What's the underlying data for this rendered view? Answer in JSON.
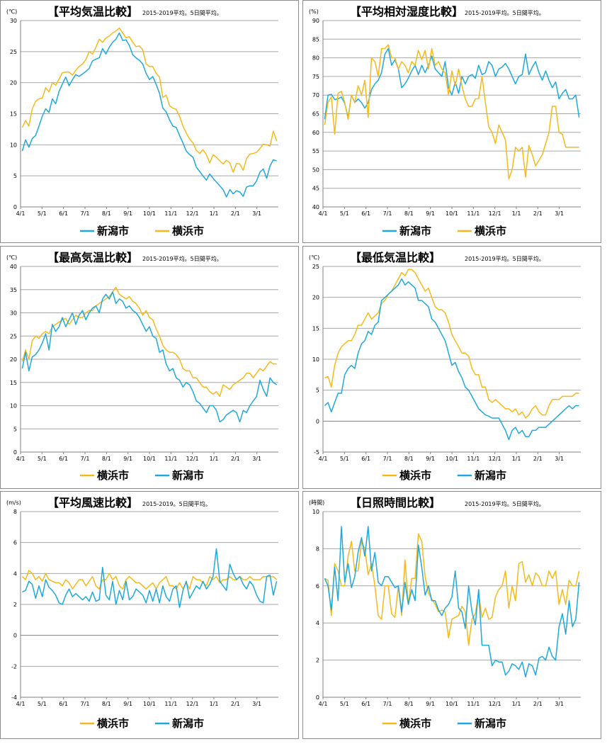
{
  "colors": {
    "niigata": "#1ea8dc",
    "yokohama": "#f6b91a",
    "grid": "#a6a6a6",
    "zero": "#808080"
  },
  "x_ticks": [
    "4/1",
    "5/1",
    "6/1",
    "7/1",
    "8/1",
    "9/1",
    "10/1",
    "11/1",
    "12/1",
    "1/1",
    "2/1",
    "3/1"
  ],
  "subtitle_5day": "2015-2019平均。5日間平均。",
  "subtitle_wind": "2015-2019。5日間平均。",
  "chart_data": [
    {
      "type": "line",
      "title": "【平均気温比較】",
      "subtitle": "2015-2019平均。5日間平均。",
      "unit": "(℃)",
      "ylim": [
        0,
        30
      ],
      "ystep": 5,
      "legend_order": [
        "新潟市",
        "横浜市"
      ],
      "series": [
        {
          "name": "新潟市",
          "color": "#1ea8dc",
          "values": [
            9.0,
            10.8,
            9.6,
            11.0,
            11.5,
            13.0,
            14.6,
            15.8,
            15.2,
            17.4,
            16.6,
            18.6,
            19.8,
            20.9,
            19.5,
            20.5,
            21.3,
            21.0,
            21.4,
            21.8,
            22.3,
            23.5,
            23.8,
            24.0,
            25.5,
            24.6,
            25.7,
            26.5,
            27.0,
            28.0,
            26.8,
            26.9,
            26.0,
            24.5,
            24.0,
            23.6,
            23.0,
            21.5,
            20.5,
            21.0,
            19.7,
            18.3,
            15.9,
            15.3,
            14.0,
            13.0,
            12.8,
            11.5,
            10.3,
            9.0,
            8.4,
            8.0,
            6.4,
            5.7,
            5.0,
            4.3,
            5.3,
            4.6,
            4.0,
            3.4,
            2.8,
            1.6,
            2.8,
            2.1,
            2.6,
            2.4,
            1.7,
            3.2,
            3.4,
            3.4,
            4.2,
            5.6,
            6.1,
            4.6,
            6.6,
            7.6,
            7.4
          ]
        },
        {
          "name": "横浜市",
          "color": "#f6b91a",
          "values": [
            12.8,
            13.9,
            13.0,
            15.8,
            17.0,
            17.4,
            17.5,
            19.2,
            18.5,
            20.0,
            19.6,
            20.6,
            21.6,
            21.7,
            21.7,
            21.2,
            22.0,
            22.6,
            23.0,
            23.7,
            25.0,
            24.6,
            25.7,
            27.0,
            26.5,
            27.2,
            27.5,
            28.0,
            28.3,
            28.8,
            28.0,
            27.2,
            27.4,
            26.5,
            25.8,
            25.9,
            25.3,
            23.0,
            22.6,
            22.6,
            21.5,
            20.9,
            17.6,
            18.0,
            16.3,
            15.9,
            15.7,
            14.6,
            13.0,
            11.9,
            10.9,
            10.3,
            9.1,
            8.6,
            9.2,
            8.4,
            7.1,
            8.4,
            8.0,
            7.4,
            6.9,
            7.5,
            7.1,
            5.6,
            7.0,
            6.9,
            5.9,
            7.8,
            8.5,
            8.6,
            8.8,
            9.4,
            10.1,
            10.0,
            9.8,
            12.2,
            10.6
          ]
        }
      ]
    },
    {
      "type": "line",
      "title": "【平均相対湿度比較】",
      "subtitle": "2015-2019平均。5日間平均。",
      "unit": "(%)",
      "ylim": [
        40,
        90
      ],
      "ystep": 5,
      "legend_order": [
        "新潟市",
        "横浜市"
      ],
      "series": [
        {
          "name": "新潟市",
          "color": "#1ea8dc",
          "values": [
            63.5,
            70.0,
            70.2,
            68.8,
            69.0,
            69.5,
            67.8,
            64.0,
            70.0,
            68.0,
            69.0,
            68.0,
            66.5,
            68.0,
            71.5,
            73.0,
            74.0,
            76.0,
            81.0,
            82.5,
            78.0,
            79.5,
            77.0,
            72.0,
            73.0,
            74.5,
            76.5,
            78.0,
            75.5,
            78.0,
            76.0,
            78.0,
            80.5,
            77.0,
            76.0,
            75.0,
            79.0,
            72.0,
            70.0,
            73.5,
            70.5,
            75.0,
            73.0,
            75.0,
            75.5,
            74.5,
            78.0,
            75.5,
            76.0,
            79.0,
            78.0,
            75.0,
            77.0,
            77.5,
            78.5,
            77.0,
            75.0,
            73.0,
            75.0,
            75.5,
            81.0,
            75.5,
            77.5,
            79.0,
            76.0,
            74.0,
            76.5,
            74.0,
            72.0,
            73.5,
            69.0,
            70.5,
            71.5,
            69.0,
            69.0,
            70.0,
            64.0
          ]
        },
        {
          "name": "横浜市",
          "color": "#f6b91a",
          "values": [
            62.0,
            68.0,
            69.5,
            59.5,
            70.5,
            71.0,
            68.0,
            63.5,
            70.0,
            68.0,
            72.5,
            70.0,
            74.0,
            64.0,
            80.0,
            79.0,
            75.0,
            82.5,
            82.5,
            83.5,
            80.0,
            80.0,
            77.0,
            79.0,
            78.0,
            76.0,
            79.0,
            78.0,
            82.0,
            79.5,
            82.0,
            77.0,
            82.5,
            78.0,
            79.0,
            77.0,
            76.0,
            70.0,
            76.5,
            72.5,
            77.0,
            72.5,
            69.0,
            67.0,
            67.0,
            69.0,
            69.0,
            75.0,
            68.0,
            61.5,
            60.0,
            57.0,
            62.0,
            60.0,
            58.0,
            47.5,
            50.0,
            56.0,
            55.0,
            56.0,
            48.0,
            56.5,
            54.0,
            51.0,
            52.5,
            54.0,
            57.0,
            60.0,
            67.0,
            67.0,
            60.0,
            59.5,
            56.0,
            56.0,
            56.0,
            56.0,
            56.0
          ]
        }
      ]
    },
    {
      "type": "line",
      "title": "【最高気温比較】",
      "subtitle": "2015-2019平均。5日間平均。",
      "unit": "(℃)",
      "ylim": [
        0,
        40
      ],
      "ystep": 5,
      "legend_order": [
        "横浜市",
        "新潟市"
      ],
      "series": [
        {
          "name": "横浜市",
          "color": "#f6b91a",
          "values": [
            19.5,
            22.0,
            20.0,
            24.0,
            25.0,
            24.5,
            25.5,
            26.0,
            25.5,
            27.0,
            27.5,
            28.0,
            28.5,
            28.8,
            27.5,
            28.5,
            29.5,
            29.0,
            29.0,
            30.0,
            30.5,
            30.5,
            31.5,
            32.0,
            32.5,
            33.0,
            33.5,
            34.5,
            35.5,
            34.0,
            33.5,
            33.0,
            33.5,
            32.5,
            32.0,
            31.0,
            29.5,
            30.5,
            29.0,
            28.5,
            26.5,
            25.0,
            23.0,
            22.0,
            21.5,
            21.5,
            21.0,
            20.0,
            18.0,
            17.5,
            17.5,
            16.0,
            16.0,
            15.0,
            14.0,
            14.0,
            13.0,
            12.5,
            13.0,
            12.0,
            14.5,
            14.0,
            13.5,
            14.5,
            15.0,
            15.5,
            16.0,
            17.0,
            17.0,
            16.0,
            17.0,
            18.0,
            17.5,
            18.5,
            19.5,
            19.0,
            19.0
          ]
        },
        {
          "name": "新潟市",
          "color": "#1ea8dc",
          "values": [
            18.0,
            21.5,
            17.5,
            20.5,
            21.0,
            22.0,
            23.5,
            25.5,
            22.0,
            27.5,
            26.0,
            27.0,
            29.0,
            27.0,
            28.5,
            30.0,
            27.5,
            29.5,
            30.5,
            28.5,
            30.0,
            31.0,
            31.5,
            30.0,
            33.0,
            34.0,
            33.0,
            34.5,
            32.0,
            33.0,
            32.5,
            31.0,
            31.5,
            30.5,
            30.0,
            29.0,
            27.5,
            26.0,
            27.0,
            25.0,
            24.5,
            21.5,
            22.0,
            19.0,
            17.5,
            18.0,
            16.0,
            15.5,
            14.0,
            15.0,
            14.5,
            13.0,
            11.0,
            10.5,
            9.5,
            8.5,
            10.0,
            10.0,
            9.0,
            6.5,
            7.0,
            8.0,
            8.5,
            9.0,
            8.5,
            6.5,
            9.0,
            8.5,
            10.0,
            11.0,
            12.0,
            15.5,
            13.5,
            12.0,
            16.0,
            15.0,
            14.5
          ]
        }
      ]
    },
    {
      "type": "line",
      "title": "【最低気温比較】",
      "subtitle": "2015-2019平均。5日間平均。",
      "unit": "(℃)",
      "ylim": [
        -5,
        25
      ],
      "ystep": 5,
      "legend_order": [
        "横浜市",
        "新潟市"
      ],
      "series": [
        {
          "name": "横浜市",
          "color": "#f6b91a",
          "values": [
            7.0,
            7.2,
            5.5,
            9.0,
            11.0,
            12.0,
            12.5,
            13.0,
            13.0,
            14.0,
            15.5,
            15.5,
            16.5,
            17.5,
            16.5,
            17.0,
            17.5,
            19.0,
            19.5,
            20.5,
            21.0,
            22.0,
            23.0,
            24.0,
            23.5,
            24.5,
            24.5,
            24.0,
            23.0,
            22.0,
            21.0,
            21.5,
            20.0,
            18.5,
            18.0,
            18.0,
            17.5,
            16.0,
            14.0,
            13.0,
            12.0,
            11.0,
            11.0,
            10.5,
            8.5,
            7.5,
            7.5,
            5.5,
            5.5,
            3.5,
            3.0,
            3.5,
            3.0,
            2.5,
            2.0,
            2.0,
            1.5,
            2.0,
            1.0,
            1.5,
            0.5,
            1.0,
            2.0,
            2.5,
            1.5,
            1.0,
            1.0,
            2.5,
            3.5,
            3.5,
            3.5,
            4.0,
            4.0,
            4.0,
            4.0,
            4.5,
            4.5
          ]
        },
        {
          "name": "新潟市",
          "color": "#1ea8dc",
          "values": [
            2.5,
            3.0,
            1.5,
            3.0,
            4.5,
            4.5,
            7.5,
            8.5,
            9.0,
            8.5,
            11.0,
            12.5,
            13.0,
            14.5,
            14.0,
            15.5,
            16.0,
            19.5,
            20.0,
            20.5,
            21.0,
            21.5,
            22.0,
            23.0,
            22.0,
            22.5,
            22.0,
            21.5,
            19.5,
            19.5,
            19.0,
            18.5,
            16.5,
            16.0,
            15.0,
            14.0,
            13.0,
            11.0,
            9.0,
            9.5,
            8.0,
            7.0,
            5.5,
            5.0,
            4.0,
            3.0,
            2.0,
            1.5,
            1.0,
            0.8,
            0.5,
            0.5,
            0.5,
            -0.5,
            -1.5,
            -3.0,
            -1.5,
            -1.0,
            -2.0,
            -1.5,
            -2.5,
            -2.5,
            -1.5,
            -1.5,
            -1.0,
            -1.0,
            -1.0,
            -0.5,
            0.0,
            0.5,
            1.0,
            1.5,
            2.0,
            2.5,
            2.0,
            2.5,
            2.5
          ]
        }
      ]
    },
    {
      "type": "line",
      "title": "【平均風速比較】",
      "subtitle": "2015-2019。5日間平均。",
      "unit": "(m/s)",
      "ylim": [
        -4,
        8
      ],
      "ystep": 2,
      "legend_order": [
        "横浜市",
        "新潟市"
      ],
      "series": [
        {
          "name": "横浜市",
          "color": "#f6b91a",
          "values": [
            3.8,
            3.6,
            4.2,
            4.0,
            3.6,
            3.8,
            3.5,
            4.0,
            3.6,
            3.5,
            3.4,
            3.4,
            3.2,
            3.6,
            3.4,
            3.0,
            3.3,
            3.6,
            3.6,
            3.2,
            3.5,
            3.8,
            3.2,
            3.0,
            3.6,
            3.6,
            4.0,
            3.6,
            3.8,
            3.2,
            3.0,
            3.6,
            3.8,
            3.6,
            3.4,
            3.4,
            3.2,
            3.0,
            3.2,
            3.4,
            3.0,
            3.4,
            3.6,
            3.8,
            3.2,
            3.2,
            3.0,
            3.4,
            3.0,
            3.4,
            3.0,
            3.8,
            3.6,
            3.6,
            3.4,
            3.2,
            3.8,
            3.6,
            3.8,
            3.4,
            3.6,
            3.6,
            3.8,
            3.6,
            3.6,
            3.8,
            3.6,
            3.6,
            3.8,
            3.6,
            3.6,
            3.6,
            3.8,
            3.8,
            3.8,
            3.8,
            3.6
          ]
        },
        {
          "name": "新潟市",
          "color": "#1ea8dc",
          "values": [
            2.8,
            2.9,
            3.5,
            3.3,
            2.4,
            3.2,
            2.5,
            3.6,
            3.1,
            2.9,
            2.6,
            2.1,
            2.0,
            2.6,
            3.0,
            2.5,
            2.7,
            2.5,
            2.3,
            2.5,
            2.2,
            2.8,
            2.2,
            2.3,
            4.4,
            2.6,
            2.3,
            3.5,
            2.0,
            2.9,
            2.3,
            3.5,
            2.3,
            2.5,
            3.0,
            2.8,
            2.6,
            2.1,
            2.9,
            2.2,
            3.0,
            2.1,
            3.2,
            2.5,
            2.2,
            3.0,
            3.2,
            1.8,
            2.9,
            3.5,
            2.4,
            2.8,
            3.2,
            3.0,
            3.5,
            3.0,
            3.3,
            3.8,
            5.6,
            3.5,
            3.2,
            2.9,
            4.6,
            4.0,
            3.6,
            3.8,
            3.3,
            3.0,
            3.5,
            3.2,
            2.6,
            2.2,
            2.1,
            3.8,
            3.9,
            2.6,
            3.5
          ]
        }
      ]
    },
    {
      "type": "line",
      "title": "【日照時間比較】",
      "subtitle": "2015-2019平均。5日間平均。",
      "unit": "(時間)",
      "ylim": [
        0,
        10
      ],
      "ystep": 2,
      "legend_order": [
        "横浜市",
        "新潟市"
      ],
      "series": [
        {
          "name": "横浜市",
          "color": "#f6b91a",
          "values": [
            6.4,
            6.3,
            4.4,
            7.2,
            6.8,
            6.0,
            6.0,
            7.6,
            8.4,
            6.8,
            6.8,
            8.4,
            8.0,
            6.6,
            7.2,
            6.0,
            4.4,
            4.2,
            6.0,
            6.0,
            4.5,
            4.3,
            6.0,
            4.4,
            7.4,
            5.0,
            6.4,
            6.4,
            8.8,
            8.4,
            6.5,
            5.6,
            5.3,
            5.0,
            4.6,
            4.7,
            4.6,
            3.2,
            4.2,
            4.3,
            4.4,
            4.9,
            4.6,
            2.8,
            4.2,
            4.5,
            5.6,
            4.3,
            4.8,
            4.2,
            4.3,
            5.4,
            5.8,
            6.0,
            6.8,
            4.8,
            6.0,
            5.2,
            7.2,
            7.3,
            6.2,
            6.6,
            6.0,
            6.7,
            6.5,
            6.0,
            6.0,
            6.8,
            6.4,
            6.8,
            5.0,
            5.8,
            5.0,
            6.3,
            6.0,
            6.0,
            6.8
          ]
        },
        {
          "name": "新潟市",
          "color": "#1ea8dc",
          "values": [
            6.4,
            6.0,
            4.7,
            7.0,
            5.2,
            9.2,
            6.2,
            7.2,
            5.9,
            6.5,
            7.8,
            8.6,
            7.6,
            9.2,
            6.8,
            7.8,
            6.2,
            6.0,
            6.5,
            6.5,
            6.2,
            5.9,
            6.0,
            4.6,
            6.2,
            5.0,
            5.8,
            5.2,
            8.2,
            7.0,
            5.5,
            6.0,
            5.2,
            5.2,
            4.7,
            4.4,
            4.8,
            5.0,
            5.4,
            6.8,
            4.8,
            4.6,
            3.7,
            6.0,
            4.6,
            3.9,
            5.8,
            2.8,
            2.8,
            2.8,
            1.7,
            2.0,
            1.9,
            1.9,
            1.2,
            1.4,
            1.8,
            1.7,
            1.5,
            1.9,
            1.1,
            1.8,
            1.7,
            1.2,
            2.1,
            2.2,
            2.0,
            2.7,
            2.2,
            2.0,
            3.8,
            4.5,
            3.4,
            5.2,
            3.8,
            4.2,
            6.2
          ]
        }
      ]
    }
  ]
}
